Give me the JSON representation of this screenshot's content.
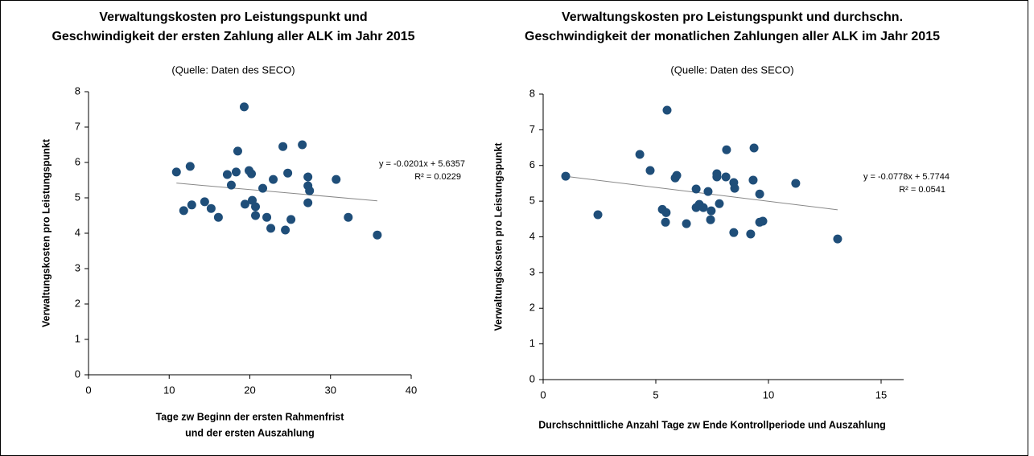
{
  "chart_data": [
    {
      "type": "scatter",
      "title": [
        "Verwaltungskosten pro Leistungspunkt und",
        "Geschwindigkeit der ersten Zahlung aller ALK im Jahr 2015"
      ],
      "subtitle": "(Quelle: Daten des SECO)",
      "y_label": "Verwaltungskosten pro Leistungspunkt",
      "x_label": [
        "Tage zw Beginn der ersten Rahmenfrist",
        "und der ersten Auszahlung"
      ],
      "xlim": [
        0,
        40
      ],
      "xticks": [
        0,
        10,
        20,
        30,
        40
      ],
      "ylim": [
        0,
        8
      ],
      "yticks": [
        0,
        1,
        2,
        3,
        4,
        5,
        6,
        7,
        8
      ],
      "color": "#1f4e79",
      "x": [
        10.9,
        11.8,
        12.6,
        12.8,
        14.4,
        15.2,
        16.1,
        17.2,
        17.7,
        18.3,
        18.5,
        19.3,
        19.4,
        19.9,
        20.2,
        20.3,
        20.7,
        20.7,
        21.6,
        22.1,
        22.6,
        22.9,
        24.1,
        24.4,
        24.7,
        25.1,
        26.5,
        27.2,
        27.2,
        27.4,
        27.2,
        30.7,
        32.2,
        35.8
      ],
      "values": [
        5.73,
        4.64,
        5.89,
        4.8,
        4.89,
        4.7,
        4.45,
        5.66,
        5.36,
        5.73,
        6.32,
        7.57,
        4.82,
        5.77,
        5.68,
        4.93,
        4.75,
        4.5,
        5.27,
        4.45,
        4.14,
        5.52,
        6.45,
        4.09,
        5.7,
        4.39,
        6.5,
        5.59,
        5.34,
        5.2,
        4.86,
        5.52,
        4.45,
        3.95
      ],
      "trendline": {
        "slope": -0.0201,
        "intercept": 5.6357,
        "equation": "y = -0.0201x + 5.6357",
        "r2": 0.0229,
        "r2_label": "R² = 0.0229"
      }
    },
    {
      "type": "scatter",
      "title": [
        "Verwaltungskosten pro Leistungspunkt und durchschn.",
        "Geschwindigkeit  der monatlichen Zahlungen aller ALK im Jahr 2015"
      ],
      "subtitle": "(Quelle: Daten des SECO)",
      "y_label": "Verwaltungskosten pro Leistungspunkt",
      "x_label": [
        "Durchschnittliche Anzahl Tage zw Ende Kontrollperiode und Auszahlung"
      ],
      "xlim": [
        0,
        15
      ],
      "xticks": [
        0,
        5,
        10,
        15
      ],
      "ylim": [
        0,
        8
      ],
      "yticks": [
        0,
        1,
        2,
        3,
        4,
        5,
        6,
        7,
        8
      ],
      "color": "#1f4e79",
      "x": [
        1.0,
        2.43,
        4.29,
        4.75,
        5.29,
        5.43,
        5.46,
        5.5,
        5.86,
        5.93,
        6.36,
        6.79,
        6.79,
        6.93,
        7.11,
        7.32,
        7.43,
        7.46,
        7.71,
        7.71,
        7.82,
        8.11,
        8.14,
        8.46,
        8.5,
        8.46,
        9.21,
        9.32,
        9.36,
        9.61,
        9.61,
        9.75,
        11.21,
        13.07
      ],
      "values": [
        5.7,
        4.62,
        6.31,
        5.86,
        4.77,
        4.41,
        4.68,
        7.55,
        5.65,
        5.72,
        4.37,
        5.34,
        4.82,
        4.91,
        4.82,
        5.27,
        4.48,
        4.73,
        5.77,
        5.68,
        4.93,
        5.68,
        6.44,
        5.52,
        5.36,
        4.12,
        4.08,
        5.59,
        6.49,
        5.2,
        4.41,
        4.44,
        5.5,
        3.94
      ],
      "trendline": {
        "slope": -0.0778,
        "intercept": 5.7744,
        "equation": "y = -0.0778x + 5.7744",
        "r2": 0.0541,
        "r2_label": "R² = 0.0541"
      }
    }
  ]
}
